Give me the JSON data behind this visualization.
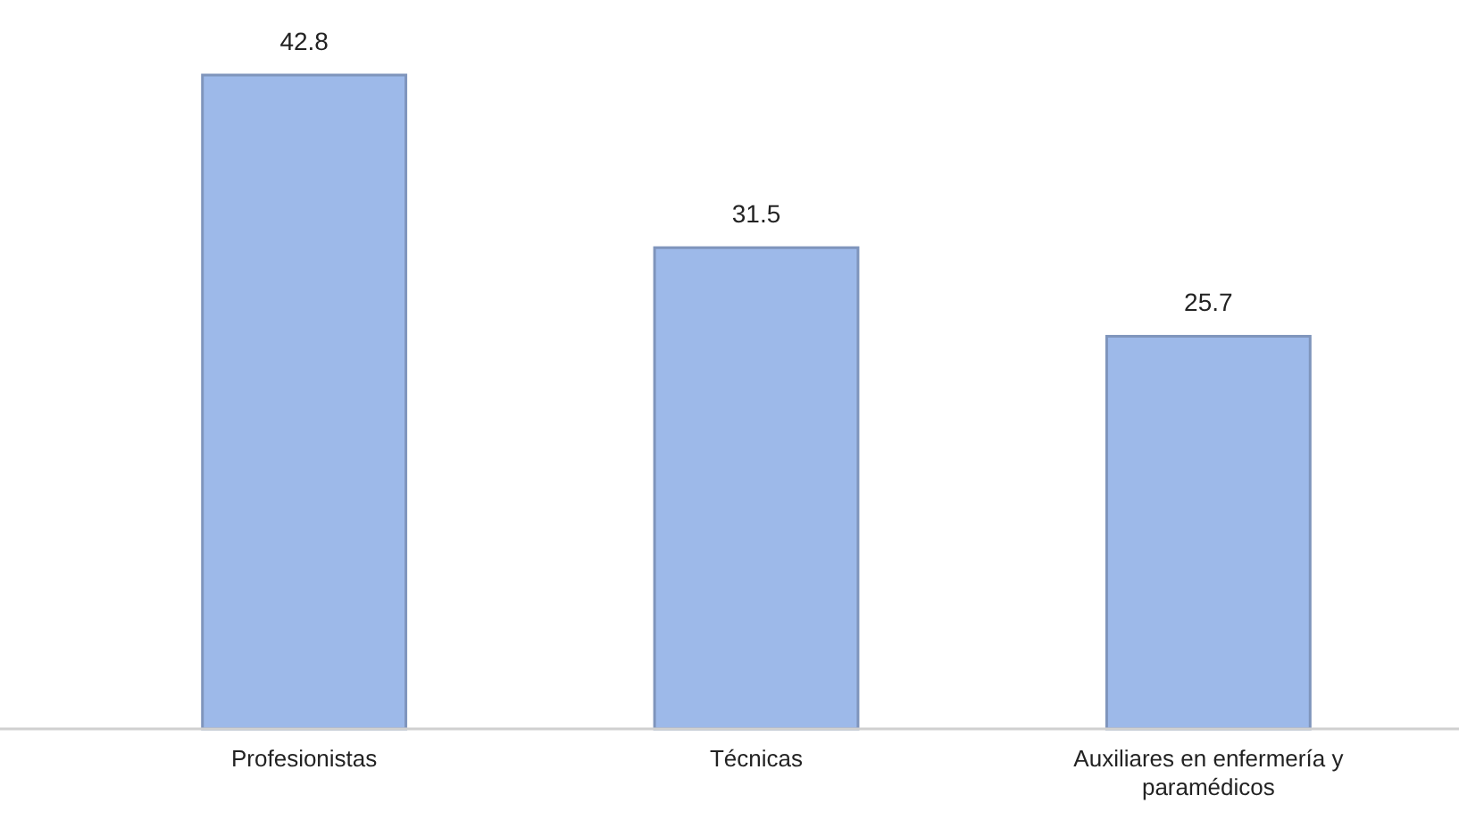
{
  "chart_data": {
    "type": "bar",
    "categories": [
      "Profesionistas",
      "Técnicas",
      "Auxiliares en enfermería y paramédicos"
    ],
    "values": [
      42.8,
      31.5,
      25.7
    ],
    "color": "#9db9e9",
    "data_labels": true
  }
}
